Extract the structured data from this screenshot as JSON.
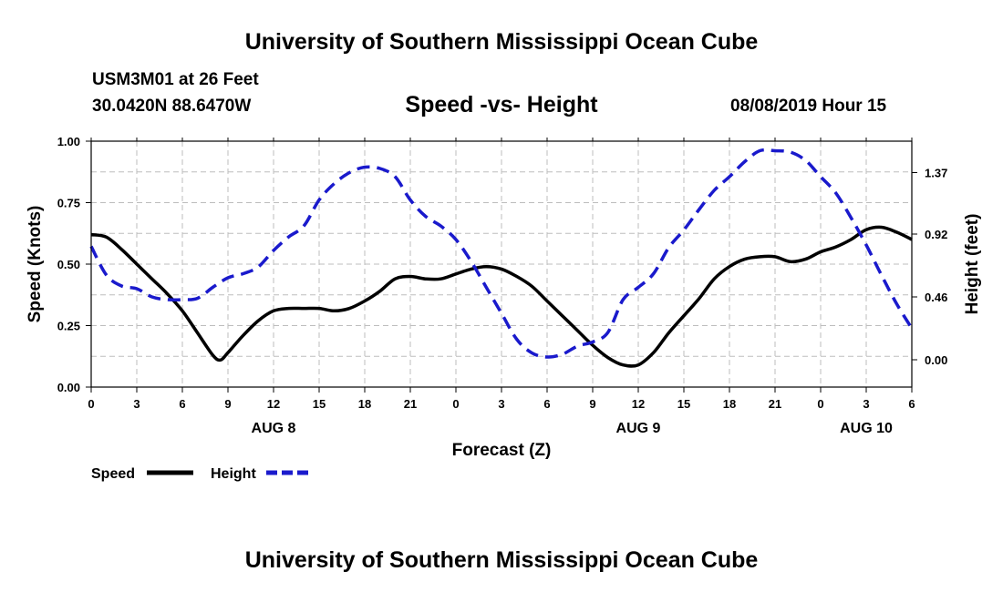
{
  "header": {
    "top_title": "University of Southern Mississippi Ocean Cube",
    "station": "USM3M01 at 26 Feet",
    "location": "30.0420N 88.6470W",
    "plot_title": "Speed -vs- Height",
    "timestamp": "08/08/2019 Hour 15",
    "bottom_title": "University of Southern Mississippi Ocean Cube"
  },
  "colors": {
    "speed": "#000000",
    "height": "#1a1acc",
    "grid": "#bdbdbd"
  },
  "chart_data": {
    "type": "line",
    "title": "Speed -vs- Height",
    "xlabel": "Forecast (Z)",
    "ylabel_left": "Speed (Knots)",
    "ylabel_right": "Height (feet)",
    "x_unit": "hours since AUG 8 00Z",
    "xlim": [
      0,
      54
    ],
    "ylim_left": [
      0,
      1.0
    ],
    "ylim_right": [
      -0.2,
      1.6
    ],
    "x_ticks": [
      0,
      3,
      6,
      9,
      12,
      15,
      18,
      21,
      24,
      27,
      30,
      33,
      36,
      39,
      42,
      45,
      48,
      51,
      54
    ],
    "x_tick_labels": [
      "0",
      "3",
      "6",
      "9",
      "12",
      "15",
      "18",
      "21",
      "0",
      "3",
      "6",
      "9",
      "12",
      "15",
      "18",
      "21",
      "0",
      "3",
      "6"
    ],
    "y_left_ticks": [
      0.0,
      0.25,
      0.5,
      0.75,
      1.0
    ],
    "y_left_tick_labels": [
      "0.00",
      "0.25",
      "0.50",
      "0.75",
      "1.00"
    ],
    "y_right_ticks": [
      0.0,
      0.46,
      0.92,
      1.37
    ],
    "y_right_tick_labels": [
      "0.00",
      "0.46",
      "0.92",
      "1.37"
    ],
    "date_labels": [
      {
        "x": 12,
        "text": "AUG 8"
      },
      {
        "x": 36,
        "text": "AUG 9"
      },
      {
        "x": 51,
        "text": "AUG 10"
      }
    ],
    "grid": true,
    "legend": {
      "placement": "bottom-left",
      "speed_label": "Speed",
      "height_label": "Height"
    },
    "series": [
      {
        "name": "Speed",
        "axis": "left",
        "style": "solid",
        "x": [
          0,
          1,
          2,
          3,
          4,
          5,
          6,
          7,
          8,
          8.5,
          9,
          10,
          11,
          12,
          13,
          14,
          15,
          16,
          17,
          18,
          19,
          20,
          21,
          22,
          23,
          24,
          25,
          26,
          27,
          28,
          29,
          30,
          31,
          32,
          33,
          34,
          35,
          36,
          37,
          38,
          39,
          40,
          41,
          42,
          43,
          44,
          45,
          46,
          47,
          48,
          49,
          50,
          51,
          52,
          53,
          54
        ],
        "values": [
          0.62,
          0.61,
          0.56,
          0.5,
          0.44,
          0.38,
          0.31,
          0.22,
          0.13,
          0.11,
          0.14,
          0.21,
          0.27,
          0.31,
          0.32,
          0.32,
          0.32,
          0.31,
          0.32,
          0.35,
          0.39,
          0.44,
          0.45,
          0.44,
          0.44,
          0.46,
          0.48,
          0.49,
          0.48,
          0.45,
          0.41,
          0.35,
          0.29,
          0.23,
          0.17,
          0.12,
          0.09,
          0.09,
          0.14,
          0.22,
          0.29,
          0.36,
          0.44,
          0.49,
          0.52,
          0.53,
          0.53,
          0.51,
          0.52,
          0.55,
          0.57,
          0.6,
          0.64,
          0.65,
          0.63,
          0.6
        ]
      },
      {
        "name": "Height",
        "axis": "right",
        "style": "dashed",
        "x": [
          0,
          1,
          2,
          3,
          4,
          5,
          6,
          7,
          8,
          9,
          10,
          11,
          12,
          13,
          14,
          15,
          16,
          17,
          18,
          19,
          20,
          21,
          22,
          23,
          24,
          25,
          26,
          27,
          28,
          29,
          30,
          31,
          32,
          33,
          34,
          35,
          36,
          37,
          38,
          39,
          40,
          41,
          42,
          43,
          44,
          45,
          46,
          47,
          48,
          49,
          50,
          51,
          52,
          53,
          54
        ],
        "values": [
          0.83,
          0.62,
          0.54,
          0.52,
          0.46,
          0.44,
          0.44,
          0.45,
          0.53,
          0.6,
          0.63,
          0.68,
          0.8,
          0.9,
          0.98,
          1.17,
          1.29,
          1.37,
          1.41,
          1.4,
          1.34,
          1.17,
          1.05,
          0.98,
          0.88,
          0.72,
          0.53,
          0.34,
          0.15,
          0.05,
          0.02,
          0.04,
          0.1,
          0.13,
          0.2,
          0.44,
          0.53,
          0.63,
          0.82,
          0.95,
          1.1,
          1.24,
          1.34,
          1.45,
          1.53,
          1.53,
          1.52,
          1.46,
          1.34,
          1.22,
          1.04,
          0.84,
          0.62,
          0.41,
          0.23
        ]
      }
    ]
  }
}
